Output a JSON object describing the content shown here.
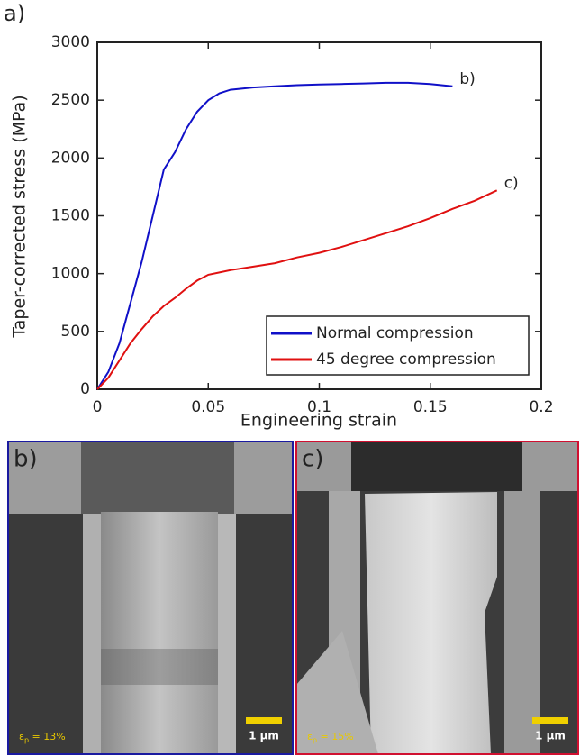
{
  "chart_data": {
    "type": "line",
    "panel_label": "a)",
    "xlabel": "Engineering strain",
    "ylabel": "Taper-corrected stress (MPa)",
    "x": [
      0,
      0.005,
      0.01,
      0.015,
      0.02,
      0.025,
      0.03,
      0.035,
      0.04,
      0.045,
      0.05,
      0.055,
      0.06,
      0.07,
      0.08,
      0.09,
      0.1,
      0.11,
      0.12,
      0.13,
      0.14,
      0.15,
      0.16,
      0.17,
      0.18
    ],
    "series": [
      {
        "name": "Normal compression",
        "color": "#1010c8",
        "end_label": "b)",
        "values": [
          0,
          150,
          400,
          750,
          1100,
          1500,
          1900,
          2050,
          2250,
          2400,
          2500,
          2560,
          2590,
          2610,
          2620,
          2630,
          2635,
          2640,
          2645,
          2650,
          2650,
          2640,
          2620,
          null,
          null
        ]
      },
      {
        "name": "45 degree compression",
        "color": "#e01010",
        "end_label": "c)",
        "values": [
          0,
          100,
          250,
          400,
          520,
          630,
          720,
          790,
          870,
          940,
          990,
          1010,
          1030,
          1060,
          1090,
          1140,
          1180,
          1230,
          1290,
          1350,
          1410,
          1480,
          1560,
          1630,
          1720
        ]
      }
    ],
    "xlim": [
      0,
      0.2
    ],
    "xticks": [
      0,
      0.05,
      0.1,
      0.15,
      0.2
    ],
    "ylim": [
      0,
      3000
    ],
    "yticks": [
      0,
      500,
      1000,
      1500,
      2000,
      2500,
      3000
    ],
    "grid": false,
    "legend": "lower right"
  },
  "panels": [
    {
      "label": "b)",
      "color": "#1a1aa0",
      "strain_symbol": "ε",
      "strain_subscript": "p",
      "strain_text": " = 13%",
      "scale_bar": "1 µm"
    },
    {
      "label": "c)",
      "color": "#d01030",
      "strain_symbol": "ε",
      "strain_subscript": "p",
      "strain_text": " = 15%",
      "scale_bar": "1 µm"
    }
  ]
}
